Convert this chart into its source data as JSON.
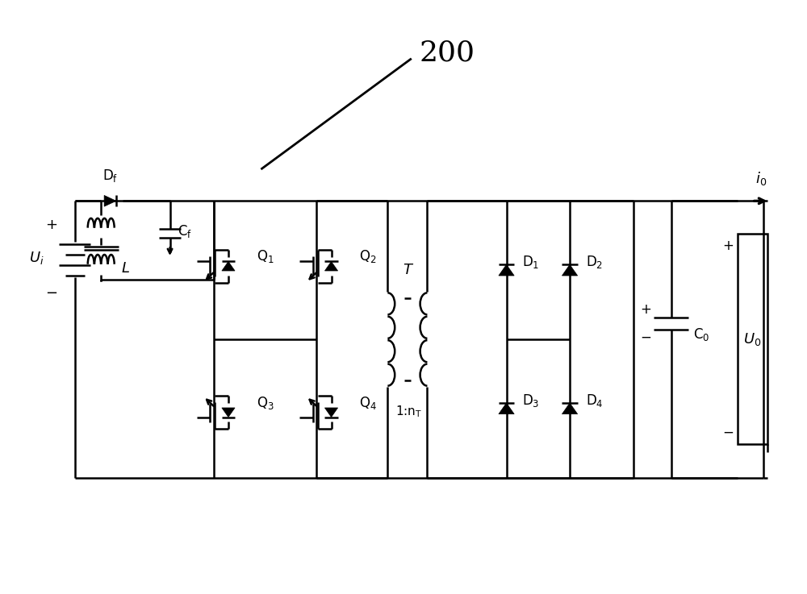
{
  "bg_color": "#ffffff",
  "line_color": "#000000",
  "lw": 1.8,
  "fig_width": 10.0,
  "fig_height": 7.37,
  "label_200": "200",
  "label_Df": "D$_\\mathrm{f}$",
  "label_Cf": "C$_\\mathrm{f}$",
  "label_L": "L",
  "label_Q1": "Q$_1$",
  "label_Q2": "Q$_2$",
  "label_Q3": "Q$_3$",
  "label_Q4": "Q$_4$",
  "label_T": "T",
  "label_nT": "1:n$_\\mathrm{T}$",
  "label_D1": "D$_1$",
  "label_D2": "D$_2$",
  "label_D3": "D$_3$",
  "label_D4": "D$_4$",
  "label_C0": "C$_0$",
  "label_U0": "U$_0$",
  "label_Ui": "U$_i$",
  "label_i0": "i$_0$",
  "label_plus": "+",
  "label_minus": "−"
}
